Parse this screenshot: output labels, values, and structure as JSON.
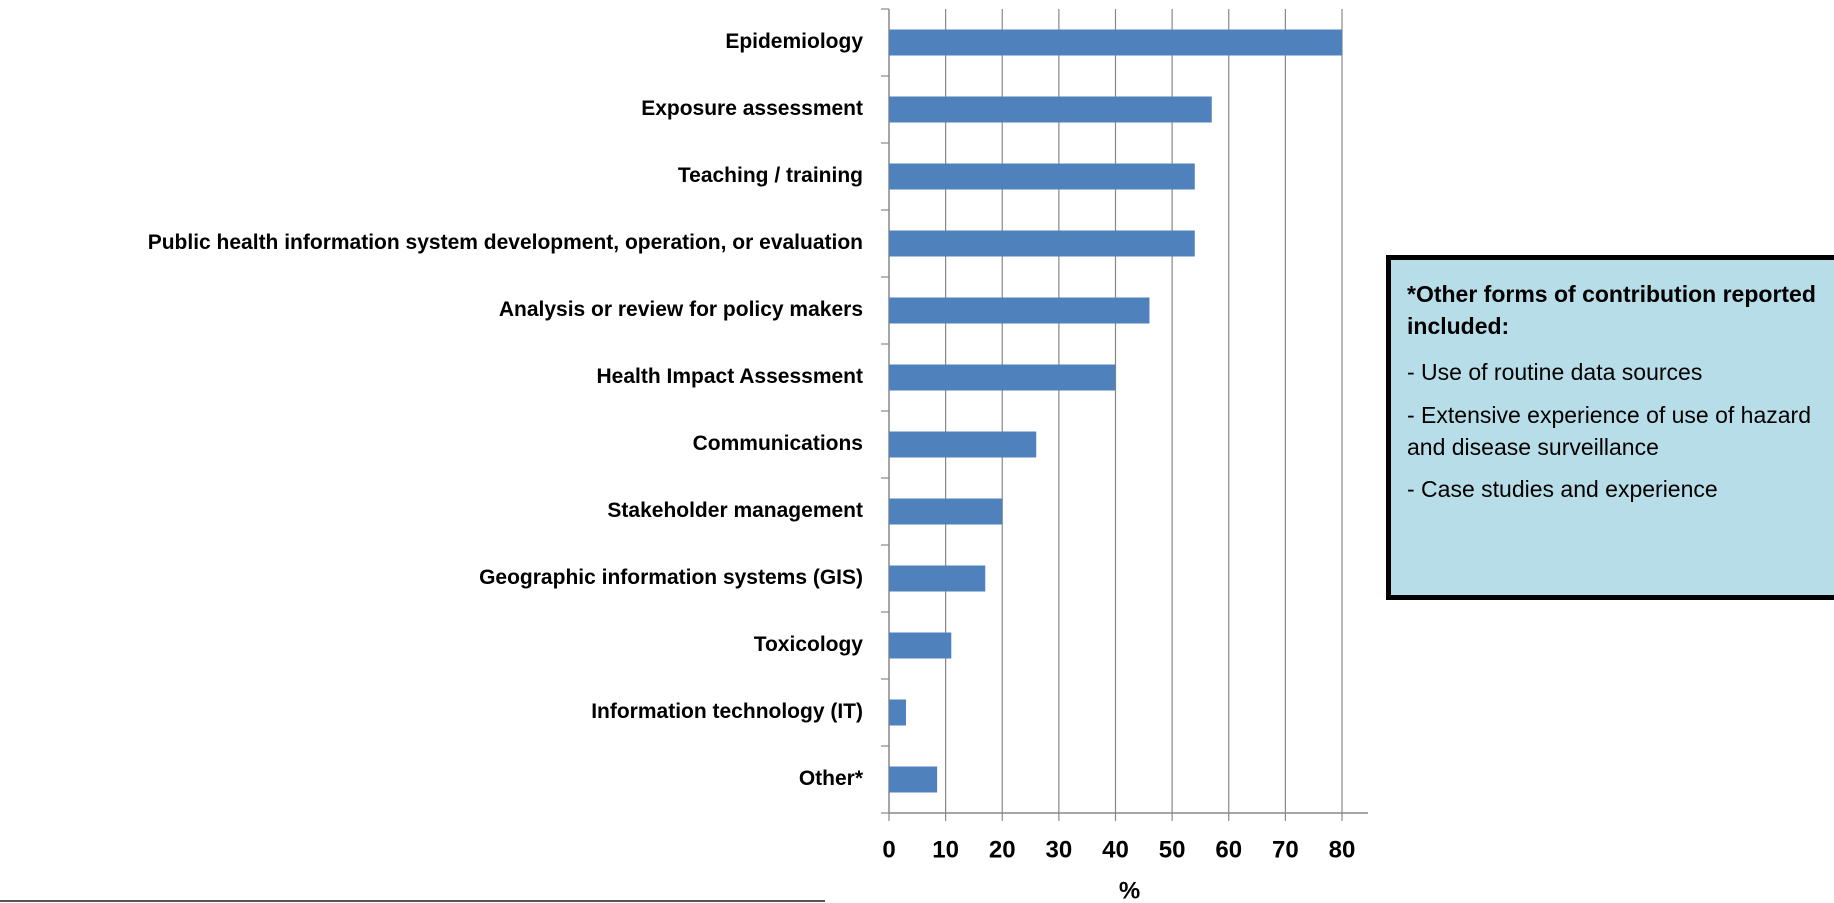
{
  "chart_data": {
    "type": "bar",
    "orientation": "horizontal",
    "categories": [
      "Epidemiology",
      "Exposure assessment",
      "Teaching / training",
      "Public health information system development, operation, or evaluation",
      "Analysis or review for policy makers",
      "Health Impact Assessment",
      "Communications",
      "Stakeholder management",
      "Geographic information systems (GIS)",
      "Toxicology",
      "Information technology (IT)",
      "Other*"
    ],
    "values": [
      80,
      57,
      54,
      54,
      46,
      40,
      26,
      20,
      17,
      11,
      3,
      8.5
    ],
    "color": "#4f81bd",
    "xlabel": "%",
    "xlim": [
      0,
      80
    ],
    "xticks": [
      0,
      10,
      20,
      30,
      40,
      50,
      60,
      70,
      80
    ],
    "grid": true
  },
  "note": {
    "title": "*Other forms of contribution reported included:",
    "items": [
      "- Use of routine data sources",
      "- Extensive experience of use of hazard and disease surveillance",
      "- Case studies and experience"
    ]
  }
}
